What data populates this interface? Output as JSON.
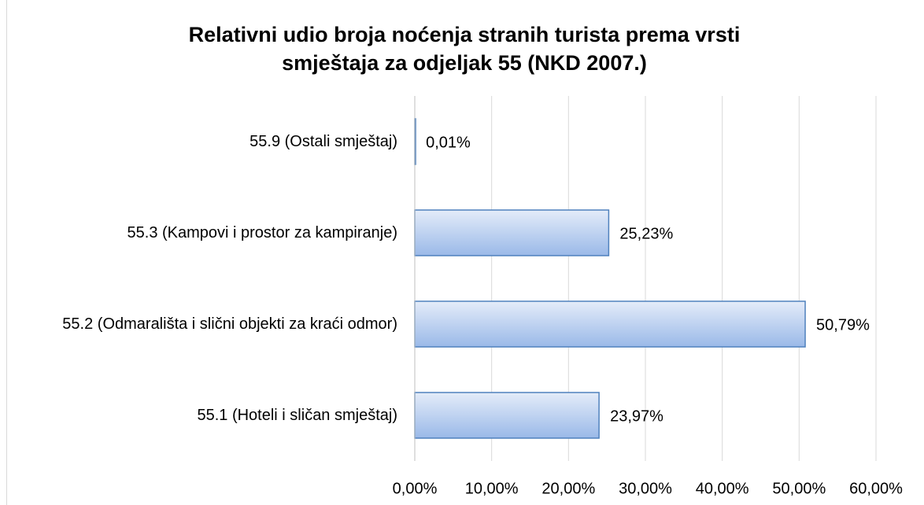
{
  "chart_data": {
    "type": "barh",
    "title": "Relativni udio broja noćenja stranih turista prema vrsti smještaja za odjeljak 55 (NKD 2007.)",
    "categories": [
      "55.9 (Ostali smještaj)",
      "55.3 (Kampovi i prostor za kampiranje)",
      "55.2 (Odmarališta i slični objekti za kraći odmor)",
      "55.1 (Hoteli i sličan smještaj)"
    ],
    "values": [
      0.01,
      25.23,
      50.79,
      23.97
    ],
    "value_labels": [
      "0,01%",
      "25,23%",
      "50,79%",
      "23,97%"
    ],
    "color": "#4f81bd",
    "xlim": [
      0,
      60
    ],
    "xticks": [
      {
        "value": 0,
        "label": "0,00%"
      },
      {
        "value": 10,
        "label": "10,00%"
      },
      {
        "value": 20,
        "label": "20,00%"
      },
      {
        "value": 30,
        "label": "30,00%"
      },
      {
        "value": 40,
        "label": "40,00%"
      },
      {
        "value": 50,
        "label": "50,00%"
      },
      {
        "value": 60,
        "label": "60,00%"
      }
    ],
    "grid": true
  }
}
